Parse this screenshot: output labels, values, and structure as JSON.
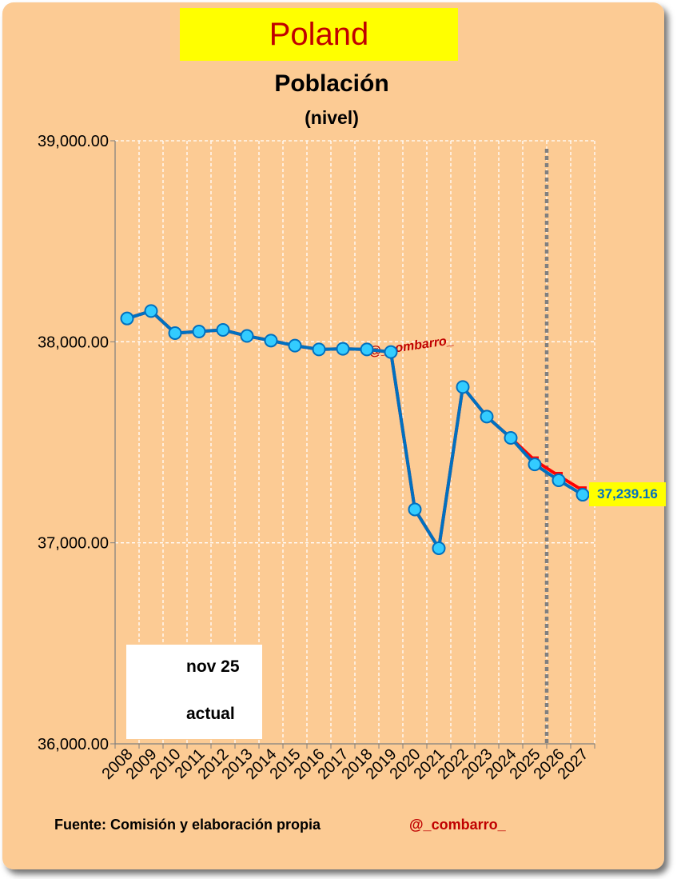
{
  "country": "Poland",
  "source": "Fuente: Comisión y elaboración propia",
  "handle": "@_combarro_",
  "watermark": "@_combarro_",
  "chart_data": {
    "type": "line",
    "title": "Población",
    "subtitle": "(nivel)",
    "xlabel": "",
    "ylabel": "",
    "ylim": [
      36000,
      39000
    ],
    "y_ticks": [
      36000,
      37000,
      38000,
      39000
    ],
    "y_tick_labels": [
      "36,000.00",
      "37,000.00",
      "38,000.00",
      "39,000.00"
    ],
    "x": [
      "2008",
      "2009",
      "2010",
      "2011",
      "2012",
      "2013",
      "2014",
      "2015",
      "2016",
      "2017",
      "2018",
      "2019",
      "2020",
      "2021",
      "2022",
      "2023",
      "2024",
      "2025",
      "2026",
      "2027"
    ],
    "grid": true,
    "legend_position": "bottom-left",
    "forecast_divider_after": "2025",
    "series": [
      {
        "name": "nov 25",
        "color": "#ff0000",
        "marker": "square",
        "values": [
          38116,
          38153,
          38043,
          38051,
          38059,
          38029,
          38006,
          37981,
          37962,
          37965,
          37962,
          37949,
          37166,
          36973,
          37775,
          37628,
          37522,
          37410,
          37333,
          37261
        ]
      },
      {
        "name": "actual",
        "color": "#0070c0",
        "marker": "circle",
        "values": [
          38116,
          38153,
          38043,
          38051,
          38059,
          38029,
          38006,
          37981,
          37962,
          37965,
          37962,
          37949,
          37166,
          36973,
          37775,
          37628,
          37522,
          37390,
          37311,
          37239.16
        ]
      }
    ],
    "last_value_label": "37,239.16"
  }
}
